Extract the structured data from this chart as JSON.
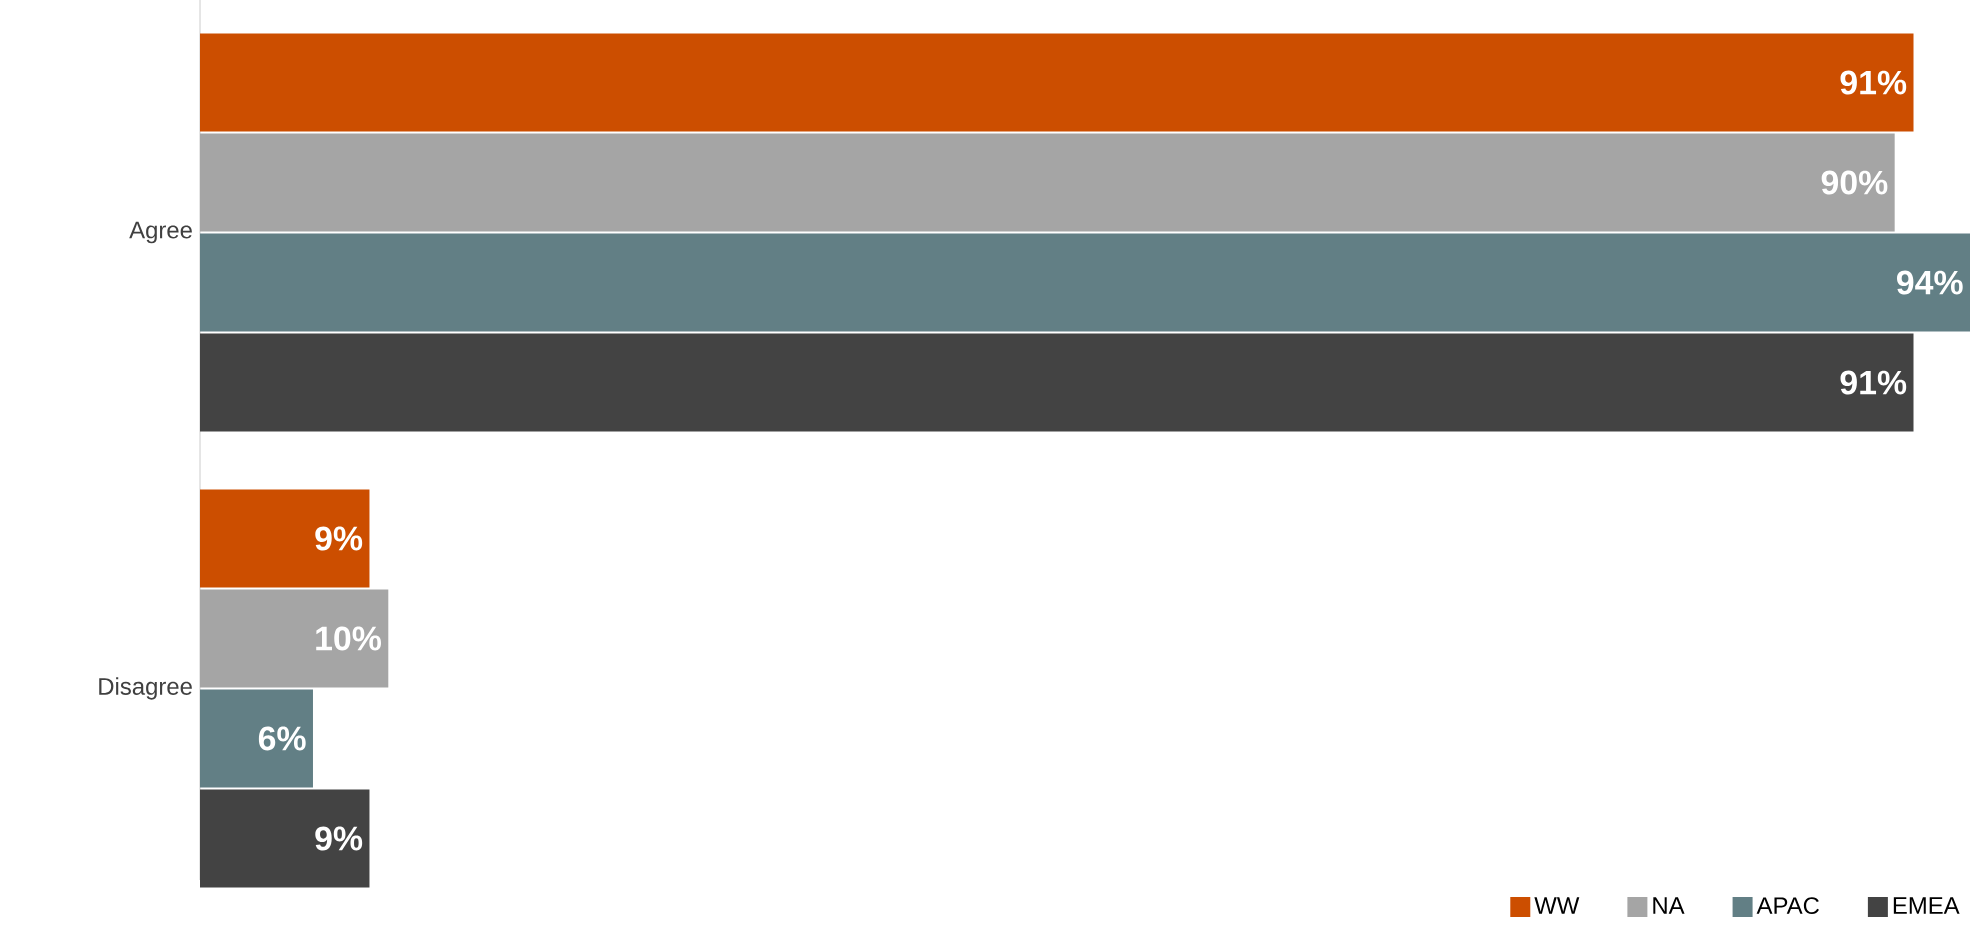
{
  "chart_data": {
    "type": "bar",
    "orientation": "horizontal",
    "categories": [
      "Agree",
      "Disagree"
    ],
    "series": [
      {
        "name": "WW",
        "color": "#cc4e00",
        "values": [
          91,
          9
        ],
        "value_labels": [
          "91%",
          "9%"
        ]
      },
      {
        "name": "NA",
        "color": "#a5a5a5",
        "values": [
          90,
          10
        ],
        "value_labels": [
          "90%",
          "10%"
        ]
      },
      {
        "name": "APAC",
        "color": "#627f85",
        "values": [
          94,
          6
        ],
        "value_labels": [
          "94%",
          "6%"
        ]
      },
      {
        "name": "EMEA",
        "color": "#434343",
        "values": [
          91,
          9
        ],
        "value_labels": [
          "91%",
          "9%"
        ]
      }
    ],
    "legend": "bottom right"
  }
}
